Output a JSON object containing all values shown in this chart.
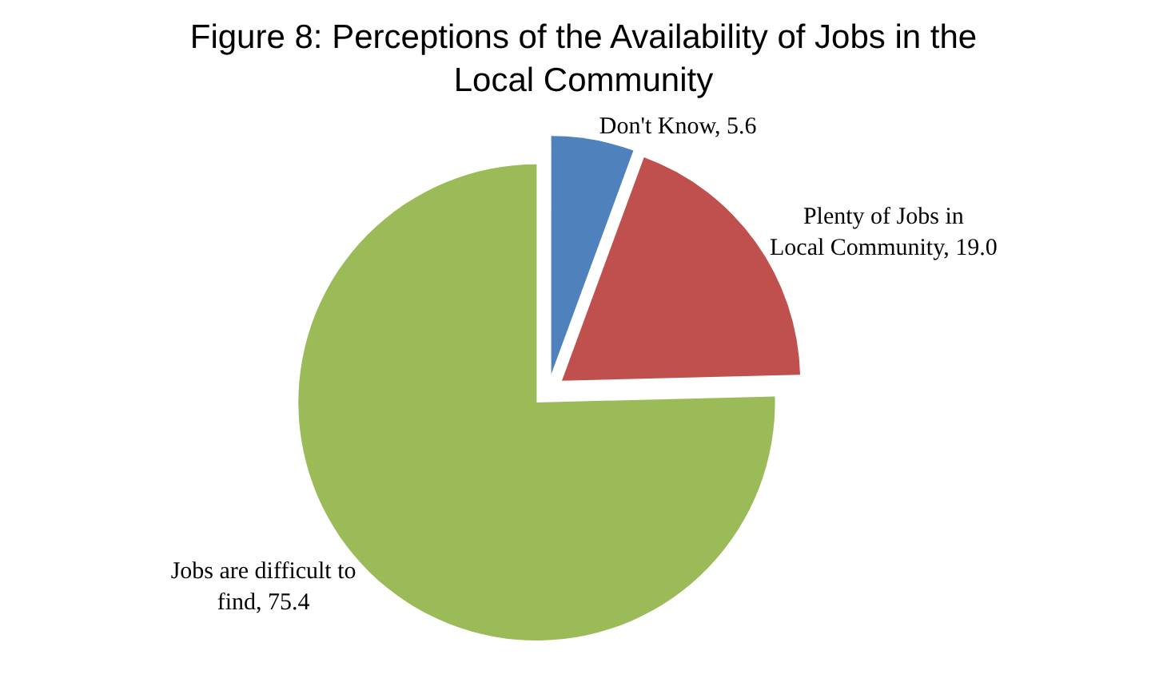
{
  "chart_data": {
    "type": "pie",
    "title": "Figure 8: Perceptions of the Availability of Jobs in the Local Community",
    "categories": [
      "Don't Know",
      "Plenty of Jobs in Local Community",
      "Jobs are difficult to find"
    ],
    "values": [
      5.6,
      19.0,
      75.4
    ],
    "value_labels": [
      "5.6",
      "19.0",
      "75.4"
    ],
    "colors": [
      "#4f81bd",
      "#c0504d",
      "#9bbb59"
    ],
    "legend": false
  }
}
